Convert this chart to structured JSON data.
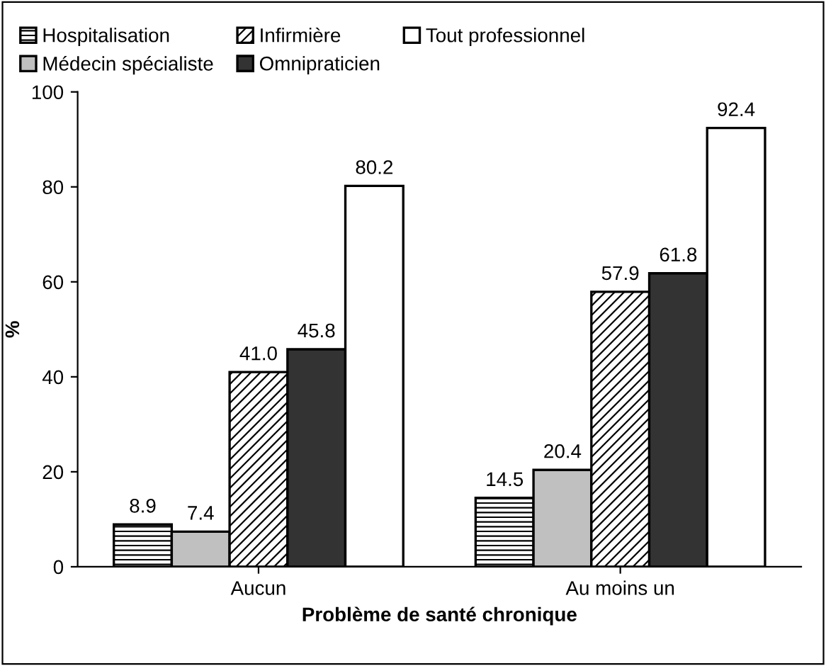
{
  "chart_data": {
    "type": "bar",
    "xlabel": "Problème de santé chronique",
    "ylabel": "%",
    "categories": [
      "Aucun",
      "Au moins un"
    ],
    "series": [
      {
        "name": "Hospitalisation",
        "color": "#000000",
        "values": [
          8.9,
          14.5
        ],
        "value_labels": [
          "8.9",
          "14.5"
        ]
      },
      {
        "name": "Médecin spécialiste",
        "color": "#c0c0c0",
        "values": [
          7.4,
          20.4
        ],
        "value_labels": [
          "7.4",
          "20.4"
        ]
      },
      {
        "name": "Infirmière",
        "color": "#000000",
        "values": [
          41.0,
          57.9
        ],
        "value_labels": [
          "41.0",
          "57.9"
        ]
      },
      {
        "name": "Omnipraticien",
        "color": "#333333",
        "values": [
          45.8,
          61.8
        ],
        "value_labels": [
          "45.8",
          "61.8"
        ]
      },
      {
        "name": "Tout professionnel",
        "color": "#ffffff",
        "values": [
          80.2,
          92.4
        ],
        "value_labels": [
          "80.2",
          "92.4"
        ]
      }
    ],
    "ylim": [
      0,
      100
    ],
    "yticks": [
      0,
      20,
      40,
      60,
      80,
      100
    ],
    "legend": "top",
    "grid": false
  }
}
